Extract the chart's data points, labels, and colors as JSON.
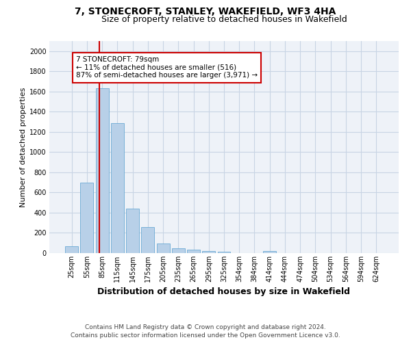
{
  "title1": "7, STONECROFT, STANLEY, WAKEFIELD, WF3 4HA",
  "title2": "Size of property relative to detached houses in Wakefield",
  "xlabel": "Distribution of detached houses by size in Wakefield",
  "ylabel": "Number of detached properties",
  "categories": [
    "25sqm",
    "55sqm",
    "85sqm",
    "115sqm",
    "145sqm",
    "175sqm",
    "205sqm",
    "235sqm",
    "265sqm",
    "295sqm",
    "325sqm",
    "354sqm",
    "384sqm",
    "414sqm",
    "444sqm",
    "474sqm",
    "504sqm",
    "534sqm",
    "564sqm",
    "594sqm",
    "624sqm"
  ],
  "values": [
    65,
    695,
    1630,
    1285,
    440,
    255,
    95,
    48,
    32,
    22,
    12,
    0,
    0,
    20,
    0,
    0,
    0,
    0,
    0,
    0,
    0
  ],
  "bar_color": "#b8d0e8",
  "bar_edge_color": "#6aaad4",
  "grid_color": "#c8d4e4",
  "background_color": "#eef2f8",
  "annotation_text": "7 STONECROFT: 79sqm\n← 11% of detached houses are smaller (516)\n87% of semi-detached houses are larger (3,971) →",
  "annotation_box_color": "#ffffff",
  "annotation_box_edge_color": "#cc0000",
  "vline_color": "#cc0000",
  "vline_x": 1.82,
  "ylim": [
    0,
    2100
  ],
  "yticks": [
    0,
    200,
    400,
    600,
    800,
    1000,
    1200,
    1400,
    1600,
    1800,
    2000
  ],
  "footnote": "Contains HM Land Registry data © Crown copyright and database right 2024.\nContains public sector information licensed under the Open Government Licence v3.0.",
  "title1_fontsize": 10,
  "title2_fontsize": 9,
  "xlabel_fontsize": 9,
  "ylabel_fontsize": 8,
  "tick_fontsize": 7,
  "annot_fontsize": 7.5,
  "footnote_fontsize": 6.5
}
